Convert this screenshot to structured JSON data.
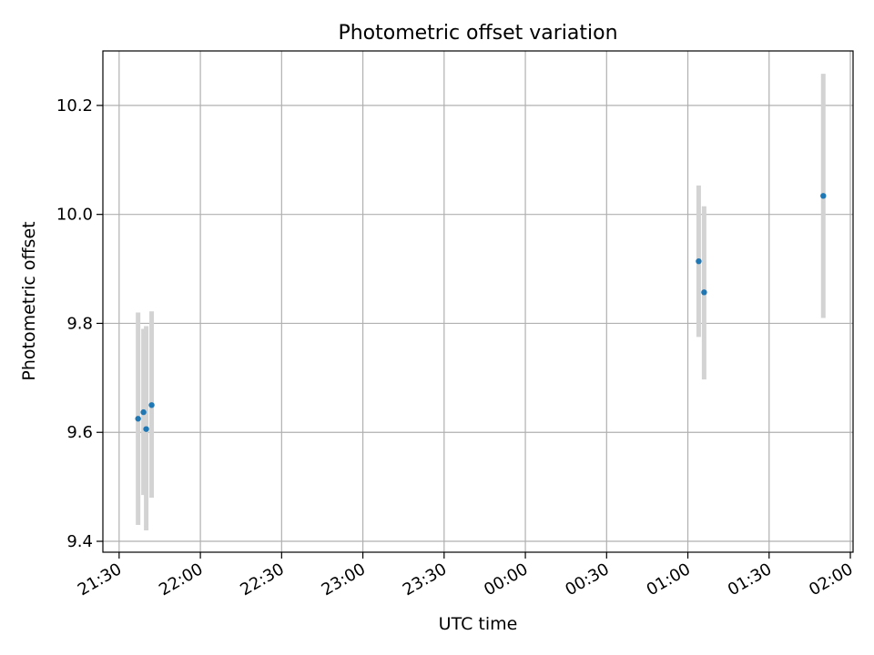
{
  "chart_data": {
    "type": "scatter",
    "title": "Photometric offset variation",
    "xlabel": "UTC time",
    "ylabel": "Photometric offset",
    "x_tick_labels": [
      "21:30",
      "22:00",
      "22:30",
      "23:00",
      "23:30",
      "00:00",
      "00:30",
      "01:00",
      "01:30",
      "02:00"
    ],
    "x_tick_times": [
      "21:30",
      "22:00",
      "22:30",
      "23:00",
      "23:30",
      "00:00",
      "00:30",
      "01:00",
      "01:30",
      "02:00"
    ],
    "xlim": [
      "21:24",
      "02:01"
    ],
    "y_tick_labels": [
      "9.4",
      "9.6",
      "9.8",
      "10.0",
      "10.2"
    ],
    "y_ticks": [
      9.4,
      9.6,
      9.8,
      10.0,
      10.2
    ],
    "ylim": [
      9.38,
      10.3
    ],
    "grid": true,
    "series": [
      {
        "points": [
          {
            "x": "21:37",
            "y": 9.625,
            "err_low": 9.43,
            "err_high": 9.82
          },
          {
            "x": "21:39",
            "y": 9.637,
            "err_low": 9.485,
            "err_high": 9.79
          },
          {
            "x": "21:40",
            "y": 9.606,
            "err_low": 9.42,
            "err_high": 9.795
          },
          {
            "x": "21:42",
            "y": 9.65,
            "err_low": 9.48,
            "err_high": 9.822
          },
          {
            "x": "01:04",
            "y": 9.914,
            "err_low": 9.775,
            "err_high": 10.053
          },
          {
            "x": "01:06",
            "y": 9.857,
            "err_low": 9.697,
            "err_high": 10.015
          },
          {
            "x": "01:50",
            "y": 10.034,
            "err_low": 9.81,
            "err_high": 10.258
          }
        ]
      }
    ],
    "colors": {
      "marker": "#1f77b4",
      "errorbar": "#d3d3d3",
      "grid": "#b0b0b0",
      "axes": "#000000"
    }
  }
}
